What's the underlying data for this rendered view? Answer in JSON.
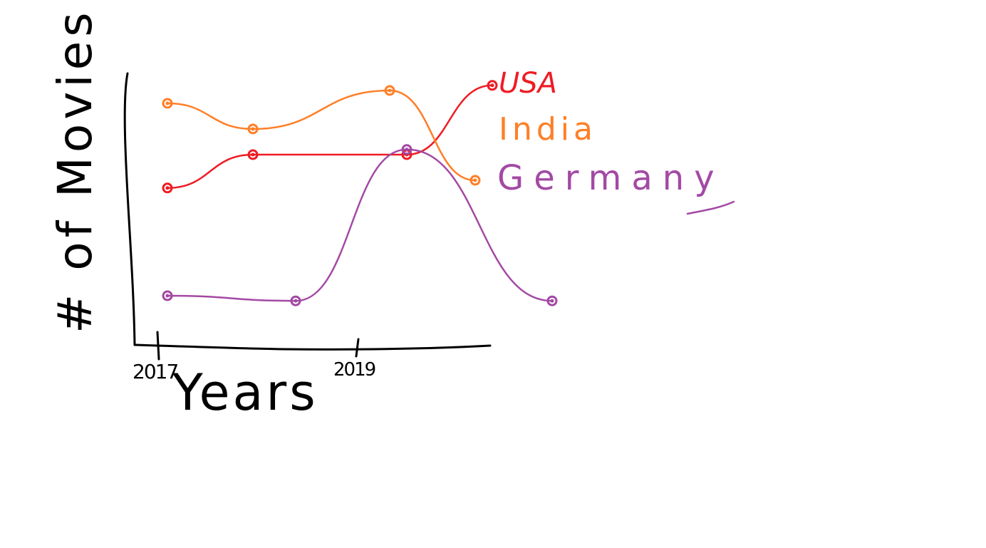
{
  "chart_data": {
    "type": "line",
    "xlabel": "Years",
    "ylabel": "# of Movies",
    "tick_labels": [
      "2017",
      "2019"
    ],
    "colors": {
      "axis": "#000000",
      "USA": "#ee1c24",
      "India": "#ff7f27",
      "Germany": "#a349a4"
    },
    "legend_position": "right",
    "series": [
      {
        "name": "USA",
        "color": "#ee1c24",
        "x": [
          2017,
          2018,
          2019.8,
          2020.8
        ],
        "y": [
          57,
          70,
          70,
          97
        ]
      },
      {
        "name": "India",
        "color": "#ff7f27",
        "x": [
          2017,
          2018,
          2019.6,
          2020.6
        ],
        "y": [
          90,
          80,
          95,
          60
        ]
      },
      {
        "name": "Germany",
        "color": "#a349a4",
        "x": [
          2017,
          2018.5,
          2019.8,
          2021.5
        ],
        "y": [
          15,
          13,
          72,
          13
        ]
      }
    ]
  }
}
